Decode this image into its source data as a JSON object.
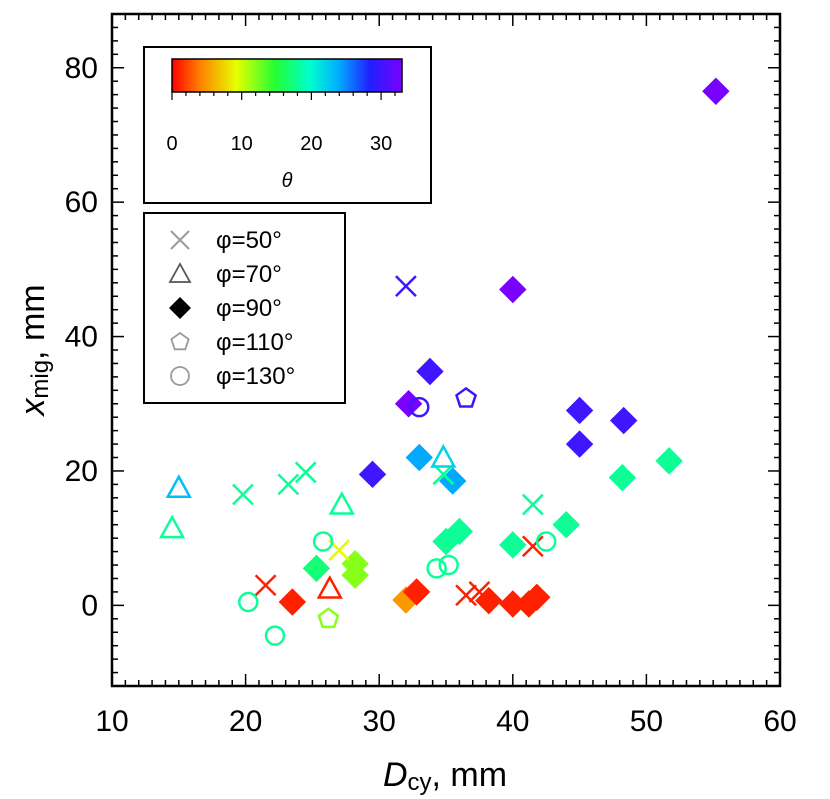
{
  "chart_data": {
    "type": "scatter",
    "title": "",
    "xlabel": {
      "main": "D",
      "sub": "cy",
      "unit": ", mm"
    },
    "ylabel": {
      "main": "x",
      "sub": "mig",
      "unit": ", mm"
    },
    "xlim": [
      10,
      60
    ],
    "ylim": [
      -12,
      88
    ],
    "xticks": [
      10,
      20,
      30,
      40,
      50,
      60
    ],
    "yticks": [
      0,
      20,
      40,
      60,
      80
    ],
    "colorbar": {
      "label": "θ",
      "range": [
        0,
        33
      ],
      "ticks": [
        0,
        10,
        20,
        30
      ]
    },
    "legend": {
      "placement": "top-left",
      "entries": [
        {
          "marker": "x",
          "label": "φ=50°"
        },
        {
          "marker": "triangle",
          "label": "φ=70°"
        },
        {
          "marker": "diamond",
          "label": "φ=90°"
        },
        {
          "marker": "pentagon",
          "label": "φ=110°"
        },
        {
          "marker": "circle",
          "label": "φ=130°"
        }
      ]
    },
    "series": [
      {
        "name": "φ=50°",
        "marker": "x",
        "points": [
          {
            "x": 32.0,
            "y": 47.5,
            "theta": 30
          },
          {
            "x": 19.8,
            "y": 16.5,
            "theta": 18
          },
          {
            "x": 23.2,
            "y": 18.0,
            "theta": 18
          },
          {
            "x": 24.5,
            "y": 19.8,
            "theta": 18
          },
          {
            "x": 34.8,
            "y": 19.5,
            "theta": 18
          },
          {
            "x": 41.5,
            "y": 15.0,
            "theta": 18
          },
          {
            "x": 27.0,
            "y": 8.2,
            "theta": 9
          },
          {
            "x": 21.5,
            "y": 3.0,
            "theta": 1
          },
          {
            "x": 36.5,
            "y": 1.5,
            "theta": 1
          },
          {
            "x": 37.5,
            "y": 2.0,
            "theta": 1
          },
          {
            "x": 41.5,
            "y": 8.8,
            "theta": 1
          }
        ]
      },
      {
        "name": "φ=70°",
        "marker": "triangle",
        "points": [
          {
            "x": 15.0,
            "y": 17.5,
            "theta": 23
          },
          {
            "x": 14.5,
            "y": 11.5,
            "theta": 18
          },
          {
            "x": 27.2,
            "y": 15.0,
            "theta": 18
          },
          {
            "x": 34.8,
            "y": 22.0,
            "theta": 22
          },
          {
            "x": 26.3,
            "y": 2.5,
            "theta": 1
          }
        ]
      },
      {
        "name": "φ=90°",
        "marker": "diamond",
        "points": [
          {
            "x": 55.2,
            "y": 76.5,
            "theta": 33
          },
          {
            "x": 40.0,
            "y": 47.0,
            "theta": 33
          },
          {
            "x": 32.2,
            "y": 30.0,
            "theta": 33
          },
          {
            "x": 33.8,
            "y": 34.8,
            "theta": 30
          },
          {
            "x": 29.5,
            "y": 19.5,
            "theta": 30
          },
          {
            "x": 45.0,
            "y": 29.0,
            "theta": 30
          },
          {
            "x": 45.0,
            "y": 24.0,
            "theta": 30
          },
          {
            "x": 48.3,
            "y": 27.5,
            "theta": 30
          },
          {
            "x": 33.0,
            "y": 22.0,
            "theta": 24
          },
          {
            "x": 35.5,
            "y": 18.5,
            "theta": 24
          },
          {
            "x": 48.2,
            "y": 19.0,
            "theta": 18
          },
          {
            "x": 51.7,
            "y": 21.5,
            "theta": 18
          },
          {
            "x": 36.0,
            "y": 11.0,
            "theta": 18
          },
          {
            "x": 35.0,
            "y": 9.5,
            "theta": 18
          },
          {
            "x": 40.0,
            "y": 9.0,
            "theta": 18
          },
          {
            "x": 44.0,
            "y": 12.0,
            "theta": 18
          },
          {
            "x": 25.3,
            "y": 5.5,
            "theta": 17
          },
          {
            "x": 28.2,
            "y": 4.5,
            "theta": 12
          },
          {
            "x": 28.2,
            "y": 6.2,
            "theta": 12
          },
          {
            "x": 32.0,
            "y": 0.8,
            "theta": 5
          },
          {
            "x": 32.8,
            "y": 2.0,
            "theta": 1
          },
          {
            "x": 23.5,
            "y": 0.5,
            "theta": 1
          },
          {
            "x": 38.2,
            "y": 0.7,
            "theta": 1
          },
          {
            "x": 40.0,
            "y": 0.2,
            "theta": 1
          },
          {
            "x": 41.2,
            "y": 0.2,
            "theta": 1
          },
          {
            "x": 41.8,
            "y": 1.2,
            "theta": 1
          }
        ]
      },
      {
        "name": "φ=110°",
        "marker": "pentagon",
        "points": [
          {
            "x": 36.5,
            "y": 30.8,
            "theta": 30
          },
          {
            "x": 26.2,
            "y": -2.0,
            "theta": 12
          }
        ]
      },
      {
        "name": "φ=130°",
        "marker": "circle",
        "points": [
          {
            "x": 33.0,
            "y": 29.5,
            "theta": 30
          },
          {
            "x": 25.8,
            "y": 9.5,
            "theta": 18
          },
          {
            "x": 34.3,
            "y": 5.5,
            "theta": 18
          },
          {
            "x": 35.2,
            "y": 6.0,
            "theta": 18
          },
          {
            "x": 42.5,
            "y": 9.5,
            "theta": 18
          },
          {
            "x": 20.2,
            "y": 0.5,
            "theta": 18
          },
          {
            "x": 22.2,
            "y": -4.5,
            "theta": 18
          }
        ]
      }
    ]
  }
}
